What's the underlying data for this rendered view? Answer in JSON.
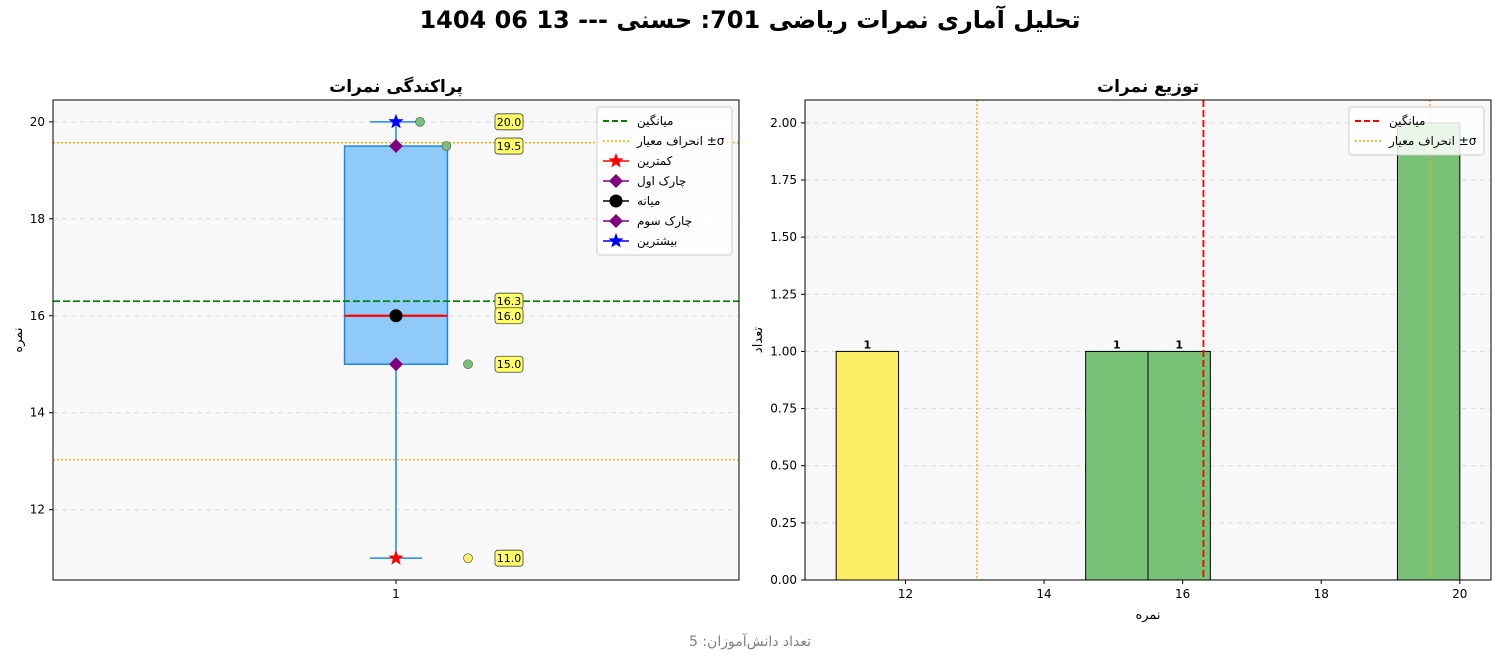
{
  "figure": {
    "suptitle": "تحلیل آماری نمرات ریاضی 701: حسنی ---  13 06 1404",
    "footer": "تعداد دانش‌آموزان: 5"
  },
  "colors": {
    "box_fill": "#90caf9",
    "box_edge": "#1e88e5",
    "median_line": "#ff0000",
    "mean_green": "#008000",
    "mean_red": "#ff0000",
    "std_orange": "#ffa500",
    "bar_green": "#77c277",
    "bar_yellow": "#fded64",
    "annotation_bg": "#ffff66",
    "panel_bg": "#f8f8f8"
  },
  "chart_data": [
    {
      "type": "box",
      "title": "پراکندگی نمرات",
      "xlabel": "",
      "ylabel": "نمره",
      "categories": [
        "1"
      ],
      "ylim": [
        10.55,
        20.45
      ],
      "yticks": [
        12,
        14,
        16,
        18,
        20
      ],
      "grid": true,
      "legend_position": "top-right",
      "stats": {
        "min": 11.0,
        "q1": 15.0,
        "median": 16.0,
        "q3": 19.5,
        "max": 20.0,
        "mean": 16.3,
        "std_lower": 13.03,
        "std_upper": 19.57
      },
      "points": [
        {
          "x_offset": 0.1,
          "value": 20.0,
          "color": "#77c277"
        },
        {
          "x_offset": 0.21,
          "value": 19.5,
          "color": "#77c277"
        },
        {
          "x_offset": 0.3,
          "value": 15.0,
          "color": "#77c277"
        },
        {
          "x_offset": 0.3,
          "value": 11.0,
          "color": "#fded64"
        }
      ],
      "annotations": [
        {
          "value": 20.0,
          "text": "20.0"
        },
        {
          "value": 19.5,
          "text": "19.5"
        },
        {
          "value": 16.3,
          "text": "16.3"
        },
        {
          "value": 16.0,
          "text": "16.0"
        },
        {
          "value": 15.0,
          "text": "15.0"
        },
        {
          "value": 11.0,
          "text": "11.0"
        }
      ],
      "legend": [
        {
          "label": "میانگین",
          "marker": "dashed-line",
          "color": "#008000"
        },
        {
          "label": "انحراف معیار ±σ",
          "marker": "dotted-line",
          "color": "#ffa500"
        },
        {
          "label": "کمترین",
          "marker": "star",
          "color": "#ff0000"
        },
        {
          "label": "چارک اول",
          "marker": "diamond",
          "color": "#800080"
        },
        {
          "label": "میانه",
          "marker": "circle",
          "color": "#000000"
        },
        {
          "label": "چارک سوم",
          "marker": "diamond",
          "color": "#800080"
        },
        {
          "label": "بیشترین",
          "marker": "star",
          "color": "#0000ff"
        }
      ]
    },
    {
      "type": "bar",
      "title": "توزیع نمرات",
      "xlabel": "نمره",
      "ylabel": "تعداد",
      "xlim": [
        10.55,
        20.45
      ],
      "ylim": [
        0,
        2.1
      ],
      "xticks": [
        12,
        14,
        16,
        18,
        20
      ],
      "yticks": [
        "0.00",
        "0.25",
        "0.50",
        "0.75",
        "1.00",
        "1.25",
        "1.50",
        "1.75",
        "2.00"
      ],
      "grid": true,
      "legend_position": "top-right",
      "bars": [
        {
          "left": 11.0,
          "right": 11.9,
          "value": 1,
          "label": "1",
          "color": "#fded64"
        },
        {
          "left": 14.6,
          "right": 15.5,
          "value": 1,
          "label": "1",
          "color": "#77c277"
        },
        {
          "left": 15.5,
          "right": 16.4,
          "value": 1,
          "label": "1",
          "color": "#77c277"
        },
        {
          "left": 19.1,
          "right": 20.0,
          "value": 2,
          "label": "",
          "color": "#77c277"
        }
      ],
      "mean": 16.3,
      "std_lines": [
        13.03,
        19.57
      ],
      "legend": [
        {
          "label": "میانگین",
          "marker": "dashed-line",
          "color": "#ff0000"
        },
        {
          "label": "انحراف معیار ±σ",
          "marker": "dotted-line",
          "color": "#ffa500"
        }
      ]
    }
  ]
}
